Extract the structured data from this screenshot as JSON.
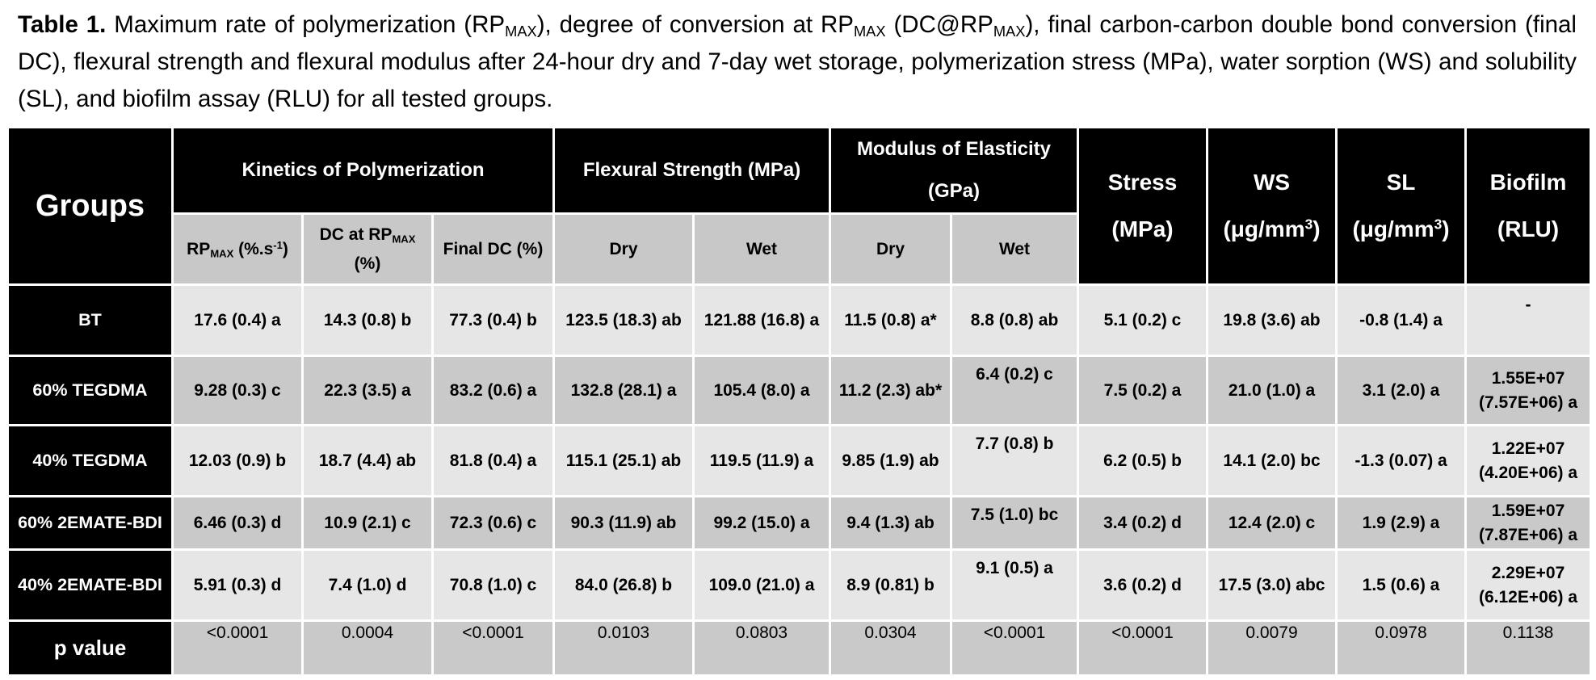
{
  "caption": {
    "label": "Table 1.",
    "p1": " Maximum rate of polymerization (RP",
    "max1": "MAX",
    "p2": "), degree of conversion at RP",
    "max2": "MAX",
    "p3": " (DC@RP",
    "max3": "MAX",
    "p4": "), final carbon-carbon double bond conversion (final DC), flexural strength and flexural modulus after 24-hour dry and 7-day wet storage, polymerization stress (MPa), water sorption (WS) and solubility (SL), and biofilm assay (RLU) for all tested groups."
  },
  "header": {
    "groups": "Groups",
    "kinetics": "Kinetics of Polymerization",
    "flexural": "Flexural Strength (MPa)",
    "modulus": "Modulus of Elasticity (GPa)",
    "stress": "Stress (MPa)",
    "ws_pre": "WS (μg/mm",
    "sl_pre": "SL (μg/mm",
    "exp": "3",
    "close": ")",
    "biofilm": "Biofilm (RLU)",
    "rp_pre": "RP",
    "rp_sub": "MAX",
    "rp_unit": " (%.s",
    "rp_exp": "-1",
    "dc_pre": "DC at RP",
    "dc_sub": "MAX",
    "dc_unit": " (%)",
    "final_dc": "Final DC (%)",
    "dry": "Dry",
    "wet": "Wet"
  },
  "rows": [
    {
      "group": "BT",
      "rp": "17.6 (0.4) a",
      "dc": "14.3 (0.8) b",
      "final": "77.3 (0.4) b",
      "fs_dry": "123.5 (18.3) ab",
      "fs_wet": "121.88 (16.8) a",
      "me_dry": "11.5 (0.8) a*",
      "me_wet": "8.8 (0.8) ab",
      "stress": "5.1 (0.2) c",
      "ws": "19.8 (3.6) ab",
      "sl": "-0.8 (1.4) a",
      "biofilm": "-"
    },
    {
      "group": "60% TEGDMA",
      "rp": "9.28 (0.3) c",
      "dc": "22.3 (3.5) a",
      "final": "83.2 (0.6) a",
      "fs_dry": "132.8 (28.1) a",
      "fs_wet": "105.4 (8.0) a",
      "me_dry": "11.2 (2.3) ab*",
      "me_wet": "6.4 (0.2) c",
      "stress": "7.5 (0.2) a",
      "ws": "21.0 (1.0) a",
      "sl": "3.1 (2.0) a",
      "biofilm": "1.55E+07 (7.57E+06) a"
    },
    {
      "group": "40% TEGDMA",
      "rp": "12.03 (0.9) b",
      "dc": "18.7 (4.4) ab",
      "final": "81.8 (0.4) a",
      "fs_dry": "115.1 (25.1) ab",
      "fs_wet": "119.5 (11.9) a",
      "me_dry": "9.85 (1.9) ab",
      "me_wet": "7.7 (0.8) b",
      "stress": "6.2 (0.5) b",
      "ws": "14.1 (2.0) bc",
      "sl": "-1.3 (0.07) a",
      "biofilm": "1.22E+07 (4.20E+06) a"
    },
    {
      "group": "60% 2EMATE-BDI",
      "rp": "6.46 (0.3) d",
      "dc": "10.9 (2.1) c",
      "final": "72.3 (0.6) c",
      "fs_dry": "90.3 (11.9) ab",
      "fs_wet": "99.2 (15.0) a",
      "me_dry": "9.4 (1.3) ab",
      "me_wet": "7.5 (1.0) bc",
      "stress": "3.4 (0.2) d",
      "ws": "12.4 (2.0) c",
      "sl": "1.9 (2.9) a",
      "biofilm": "1.59E+07 (7.87E+06) a"
    },
    {
      "group": "40% 2EMATE-BDI",
      "rp": "5.91 (0.3) d",
      "dc": "7.4 (1.0) d",
      "final": "70.8 (1.0) c",
      "fs_dry": "84.0 (26.8) b",
      "fs_wet": "109.0 (21.0) a",
      "me_dry": "8.9 (0.81) b",
      "me_wet": "9.1 (0.5) a",
      "stress": "3.6 (0.2) d",
      "ws": "17.5 (3.0) abc",
      "sl": "1.5 (0.6) a",
      "biofilm": "2.29E+07 (6.12E+06) a"
    }
  ],
  "pvalue": {
    "label": "p value",
    "rp": "<0.0001",
    "dc": "0.0004",
    "final": "<0.0001",
    "fs_dry": "0.0103",
    "fs_wet": "0.0803",
    "me_dry": "0.0304",
    "me_wet": "<0.0001",
    "stress": "<0.0001",
    "ws": "0.0079",
    "sl": "0.0978",
    "biofilm": "0.1138"
  }
}
